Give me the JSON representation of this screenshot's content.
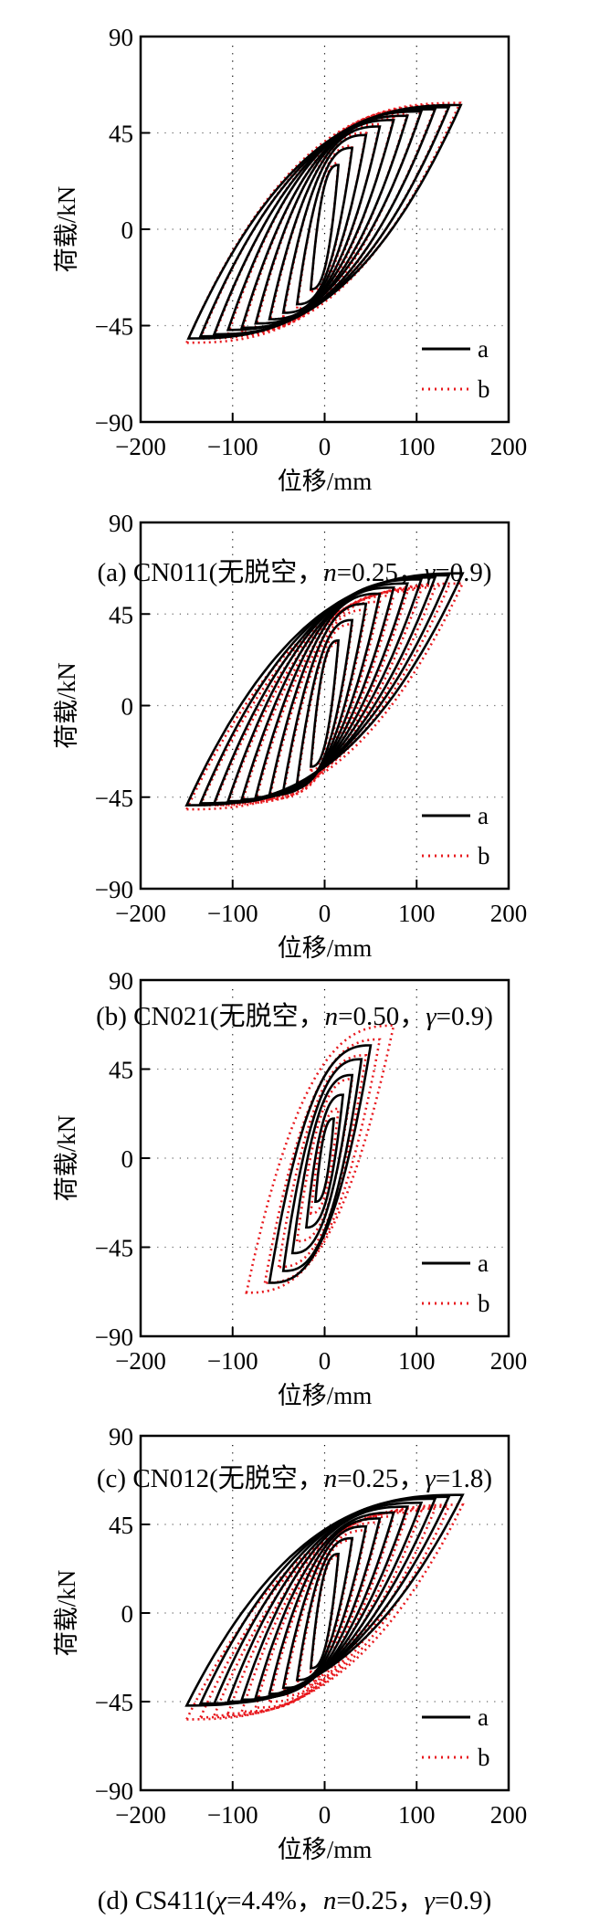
{
  "chart_data": [
    {
      "type": "line",
      "panel": "a",
      "caption": [
        {
          "text": "(a) CN011(无脱空，",
          "italic": false
        },
        {
          "text": "n",
          "italic": true
        },
        {
          "text": "=0.25，",
          "italic": false
        },
        {
          "text": "γ",
          "italic": true
        },
        {
          "text": "=0.9)",
          "italic": false
        }
      ],
      "xlabel": "位移/mm",
      "ylabel": "荷载/kN",
      "xlim": [
        -200,
        200
      ],
      "ylim": [
        -90,
        90
      ],
      "xticks": [
        "−200",
        "−100",
        "0",
        "100",
        "200"
      ],
      "yticks": [
        "90",
        "45",
        "0",
        "−45",
        "−90"
      ],
      "grid": true,
      "legend": "bottom-right",
      "series": [
        {
          "name": "a",
          "color": "#000000",
          "style": "solid",
          "loops": [
            [
              15,
              30,
              -15,
              -28
            ],
            [
              30,
              38,
              -30,
              -35
            ],
            [
              45,
              44,
              -45,
              -39
            ],
            [
              60,
              48,
              -60,
              -42
            ],
            [
              75,
              51,
              -75,
              -44
            ],
            [
              90,
              53,
              -90,
              -46
            ],
            [
              105,
              55,
              -105,
              -47
            ],
            [
              120,
              56,
              -120,
              -49
            ],
            [
              135,
              57,
              -135,
              -50
            ],
            [
              148,
              58,
              -148,
              -51
            ]
          ]
        },
        {
          "name": "b",
          "color": "#e8191e",
          "style": "dotted",
          "loops": [
            [
              15,
              31,
              -15,
              -29
            ],
            [
              30,
              39,
              -30,
              -37
            ],
            [
              45,
              45,
              -45,
              -41
            ],
            [
              60,
              49,
              -60,
              -44
            ],
            [
              75,
              52,
              -75,
              -46
            ],
            [
              90,
              54,
              -90,
              -48
            ],
            [
              105,
              56,
              -105,
              -49
            ],
            [
              120,
              57,
              -120,
              -50
            ],
            [
              135,
              58,
              -135,
              -51
            ],
            [
              147,
              59,
              -150,
              -53
            ]
          ]
        }
      ]
    },
    {
      "type": "line",
      "panel": "b",
      "caption": [
        {
          "text": "(b) CN021(无脱空，",
          "italic": false
        },
        {
          "text": "n",
          "italic": true
        },
        {
          "text": "=0.50，",
          "italic": false
        },
        {
          "text": "γ",
          "italic": true
        },
        {
          "text": "=0.9)",
          "italic": false
        }
      ],
      "xlabel": "位移/mm",
      "ylabel": "荷载/kN",
      "xlim": [
        -200,
        200
      ],
      "ylim": [
        -90,
        90
      ],
      "xticks": [
        "−200",
        "−100",
        "0",
        "100",
        "200"
      ],
      "yticks": [
        "90",
        "45",
        "0",
        "−45",
        "−90"
      ],
      "grid": true,
      "legend": "bottom-right",
      "series": [
        {
          "name": "a",
          "color": "#000000",
          "style": "solid",
          "loops": [
            [
              15,
              32,
              -15,
              -30
            ],
            [
              30,
              42,
              -30,
              -38
            ],
            [
              45,
              50,
              -45,
              -42
            ],
            [
              60,
              55,
              -60,
              -44
            ],
            [
              75,
              58,
              -75,
              -45
            ],
            [
              90,
              60,
              -90,
              -46
            ],
            [
              105,
              62,
              -105,
              -47
            ],
            [
              120,
              63,
              -120,
              -48
            ],
            [
              135,
              64,
              -135,
              -48
            ],
            [
              150,
              65,
              -150,
              -49
            ]
          ]
        },
        {
          "name": "b",
          "color": "#e8191e",
          "style": "dotted",
          "loops": [
            [
              15,
              31,
              -15,
              -32
            ],
            [
              30,
              40,
              -30,
              -40
            ],
            [
              45,
              47,
              -45,
              -44
            ],
            [
              60,
              51,
              -60,
              -46
            ],
            [
              75,
              54,
              -75,
              -47
            ],
            [
              90,
              56,
              -90,
              -48
            ],
            [
              105,
              57,
              -105,
              -48
            ],
            [
              120,
              58,
              -120,
              -49
            ],
            [
              135,
              59,
              -135,
              -49
            ],
            [
              150,
              60,
              -150,
              -51
            ]
          ]
        }
      ]
    },
    {
      "type": "line",
      "panel": "c",
      "caption": [
        {
          "text": "(c) CN012(无脱空，",
          "italic": false
        },
        {
          "text": "n",
          "italic": true
        },
        {
          "text": "=0.25，",
          "italic": false
        },
        {
          "text": "γ",
          "italic": true
        },
        {
          "text": "=1.8)",
          "italic": false
        }
      ],
      "xlabel": "位移/mm",
      "ylabel": "荷载/kN",
      "xlim": [
        -200,
        200
      ],
      "ylim": [
        -90,
        90
      ],
      "xticks": [
        "−200",
        "−100",
        "0",
        "100",
        "200"
      ],
      "yticks": [
        "90",
        "45",
        "0",
        "−45",
        "−90"
      ],
      "grid": true,
      "legend": "bottom-right",
      "series": [
        {
          "name": "a",
          "color": "#000000",
          "style": "solid",
          "loops": [
            [
              10,
              20,
              -10,
              -22
            ],
            [
              20,
              32,
              -20,
              -35
            ],
            [
              30,
              42,
              -35,
              -48
            ],
            [
              40,
              50,
              -45,
              -57
            ],
            [
              50,
              57,
              -60,
              -63
            ]
          ]
        },
        {
          "name": "b",
          "color": "#e8191e",
          "style": "dotted",
          "loops": [
            [
              15,
              25,
              -15,
              -28
            ],
            [
              30,
              40,
              -30,
              -42
            ],
            [
              45,
              52,
              -50,
              -55
            ],
            [
              60,
              60,
              -65,
              -63
            ],
            [
              75,
              67,
              -85,
              -68
            ]
          ]
        }
      ]
    },
    {
      "type": "line",
      "panel": "d",
      "caption": [
        {
          "text": "(d) CS411(",
          "italic": false
        },
        {
          "text": "χ",
          "italic": true
        },
        {
          "text": "=4.4%，",
          "italic": false
        },
        {
          "text": "n",
          "italic": true
        },
        {
          "text": "=0.25，",
          "italic": false
        },
        {
          "text": "γ",
          "italic": true
        },
        {
          "text": "=0.9)",
          "italic": false
        }
      ],
      "xlabel": "位移/mm",
      "ylabel": "荷载/kN",
      "xlim": [
        -200,
        200
      ],
      "ylim": [
        -90,
        90
      ],
      "xticks": [
        "−200",
        "−100",
        "0",
        "100",
        "200"
      ],
      "yticks": [
        "90",
        "45",
        "0",
        "−45",
        "−90"
      ],
      "grid": true,
      "legend": "bottom-right",
      "series": [
        {
          "name": "a",
          "color": "#000000",
          "style": "solid",
          "loops": [
            [
              15,
              30,
              -15,
              -28
            ],
            [
              30,
              38,
              -30,
              -34
            ],
            [
              45,
              44,
              -45,
              -38
            ],
            [
              60,
              48,
              -60,
              -41
            ],
            [
              75,
              51,
              -75,
              -43
            ],
            [
              90,
              54,
              -90,
              -44
            ],
            [
              105,
              56,
              -105,
              -45
            ],
            [
              120,
              58,
              -120,
              -46
            ],
            [
              135,
              59,
              -135,
              -46
            ],
            [
              150,
              60,
              -150,
              -47
            ]
          ]
        },
        {
          "name": "b",
          "color": "#e8191e",
          "style": "dotted",
          "loops": [
            [
              15,
              29,
              -15,
              -30
            ],
            [
              30,
              37,
              -30,
              -38
            ],
            [
              45,
              42,
              -45,
              -42
            ],
            [
              60,
              46,
              -60,
              -45
            ],
            [
              75,
              49,
              -75,
              -48
            ],
            [
              90,
              51,
              -90,
              -50
            ],
            [
              105,
              52,
              -105,
              -51
            ],
            [
              120,
              53,
              -120,
              -52
            ],
            [
              135,
              54,
              -135,
              -53
            ],
            [
              150,
              55,
              -150,
              -54
            ]
          ]
        }
      ]
    }
  ]
}
